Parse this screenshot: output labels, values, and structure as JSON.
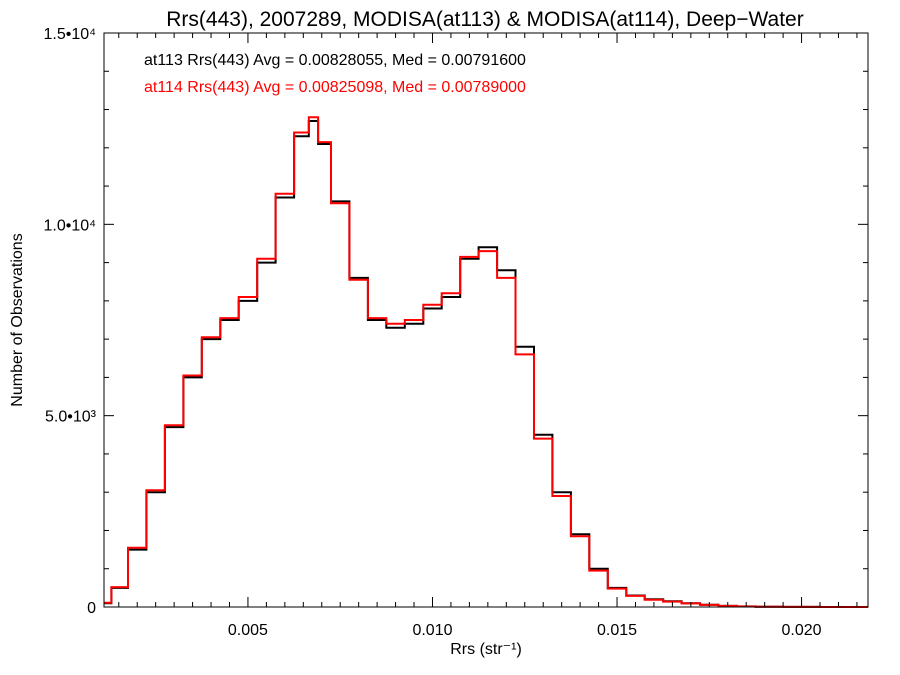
{
  "chart_data": {
    "type": "line",
    "title": "Rrs(443), 2007289, MODISA(at113) & MODISA(at114), Deep−Water",
    "xlabel": "Rrs (str⁻¹)",
    "ylabel": "Number of Observations",
    "xlim": [
      0.0011,
      0.0218
    ],
    "ylim": [
      0,
      15000
    ],
    "x_ticks": [
      {
        "value": 0.005,
        "label": "0.005"
      },
      {
        "value": 0.01,
        "label": "0.010"
      },
      {
        "value": 0.015,
        "label": "0.015"
      },
      {
        "value": 0.02,
        "label": "0.020"
      }
    ],
    "y_ticks": [
      {
        "value": 0,
        "label": "0"
      },
      {
        "value": 5000,
        "label": "5.0•10³"
      },
      {
        "value": 10000,
        "label": "1.0•10⁴"
      },
      {
        "value": 15000,
        "label": "1.5•10⁴"
      }
    ],
    "grid": false,
    "legend_placement": "top-left",
    "annotations": [
      {
        "text": "at113 Rrs(443) Avg = 0.00828055, Med = 0.00791600",
        "color": "#000000"
      },
      {
        "text": "at114 Rrs(443) Avg = 0.00825098, Med = 0.00789000",
        "color": "#ff0000"
      }
    ],
    "series": [
      {
        "name": "at113",
        "color": "#000000",
        "step": true,
        "x": [
          0.0011,
          0.0015,
          0.002,
          0.0025,
          0.003,
          0.0035,
          0.004,
          0.0045,
          0.005,
          0.0055,
          0.006,
          0.0065,
          0.0068,
          0.007,
          0.0075,
          0.008,
          0.0085,
          0.009,
          0.0095,
          0.01,
          0.0105,
          0.011,
          0.0115,
          0.012,
          0.0125,
          0.013,
          0.0135,
          0.014,
          0.0145,
          0.015,
          0.0155,
          0.016,
          0.0165,
          0.017,
          0.0175,
          0.018,
          0.0185,
          0.019,
          0.02,
          0.021,
          0.0218
        ],
        "y": [
          100,
          500,
          1500,
          3000,
          4700,
          6000,
          7000,
          7500,
          8000,
          9000,
          10700,
          12300,
          12700,
          12100,
          10600,
          8600,
          7500,
          7300,
          7400,
          7800,
          8100,
          9100,
          9400,
          8800,
          6800,
          4500,
          3000,
          1900,
          1000,
          500,
          300,
          200,
          150,
          100,
          60,
          30,
          15,
          8,
          3,
          1,
          0
        ]
      },
      {
        "name": "at114",
        "color": "#ff0000",
        "step": true,
        "x": [
          0.0011,
          0.0015,
          0.002,
          0.0025,
          0.003,
          0.0035,
          0.004,
          0.0045,
          0.005,
          0.0055,
          0.006,
          0.0065,
          0.0068,
          0.007,
          0.0075,
          0.008,
          0.0085,
          0.009,
          0.0095,
          0.01,
          0.0105,
          0.011,
          0.0115,
          0.012,
          0.0125,
          0.013,
          0.0135,
          0.014,
          0.0145,
          0.015,
          0.0155,
          0.016,
          0.0165,
          0.017,
          0.0175,
          0.018,
          0.0185,
          0.019,
          0.02,
          0.021,
          0.0218
        ],
        "y": [
          110,
          520,
          1550,
          3050,
          4750,
          6050,
          7050,
          7550,
          8100,
          9100,
          10800,
          12400,
          12800,
          12150,
          10550,
          8550,
          7550,
          7400,
          7500,
          7900,
          8200,
          9150,
          9300,
          8600,
          6600,
          4400,
          2900,
          1850,
          950,
          480,
          290,
          190,
          140,
          95,
          55,
          28,
          14,
          7,
          3,
          1,
          0
        ]
      }
    ]
  }
}
